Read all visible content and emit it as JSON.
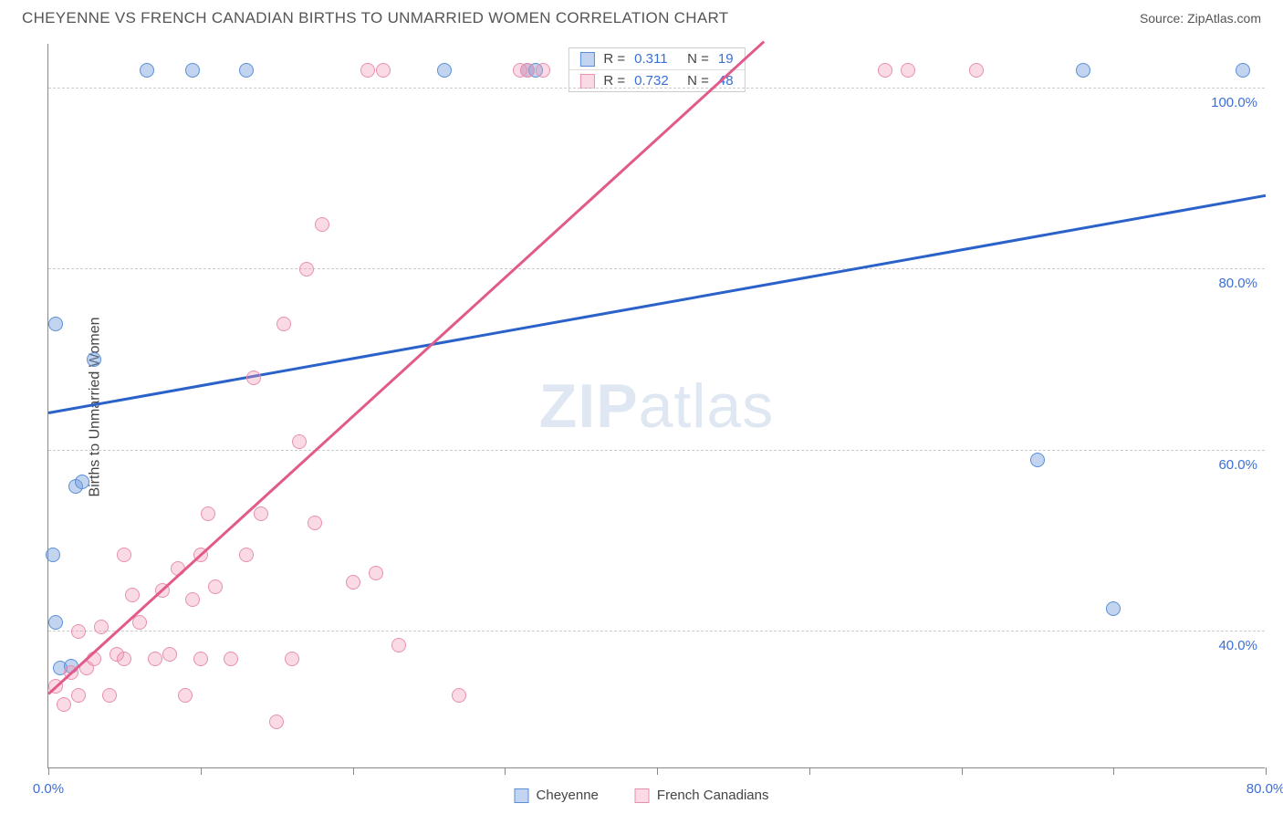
{
  "header": {
    "title": "CHEYENNE VS FRENCH CANADIAN BIRTHS TO UNMARRIED WOMEN CORRELATION CHART",
    "source_prefix": "Source: ",
    "source": "ZipAtlas.com"
  },
  "chart": {
    "y_label": "Births to Unmarried Women",
    "watermark_a": "ZIP",
    "watermark_b": "atlas",
    "xlim": [
      0,
      80
    ],
    "ylim": [
      25,
      105
    ],
    "x_ticks": [
      0,
      10,
      20,
      30,
      40,
      50,
      60,
      70,
      80
    ],
    "x_tick_labels": {
      "0": "0.0%",
      "80": "80.0%"
    },
    "y_gridlines": [
      40,
      60,
      80,
      100
    ],
    "y_tick_labels": {
      "40": "40.0%",
      "60": "60.0%",
      "80": "80.0%",
      "100": "100.0%"
    },
    "colors": {
      "blue_fill": "rgba(120,160,220,0.45)",
      "blue_stroke": "#5a8fd6",
      "pink_fill": "rgba(240,150,180,0.35)",
      "pink_stroke": "#e88fb0",
      "blue_line": "#2a62c9",
      "pink_line": "#e15a8a",
      "value_text": "#3a6fd8"
    },
    "marker_radius": 8,
    "line_width": 2.5,
    "series": [
      {
        "name": "Cheyenne",
        "color_key": "blue",
        "R": "0.311",
        "N": "19",
        "trend": {
          "x1": 0,
          "y1": 64,
          "x2": 80,
          "y2": 88
        },
        "points": [
          [
            0.3,
            48.5
          ],
          [
            0.5,
            41
          ],
          [
            0.8,
            36
          ],
          [
            1.5,
            36.2
          ],
          [
            0.5,
            74
          ],
          [
            1.8,
            56
          ],
          [
            2.2,
            56.5
          ],
          [
            3.0,
            70
          ],
          [
            6.5,
            102
          ],
          [
            9.5,
            102
          ],
          [
            13,
            102
          ],
          [
            26,
            102
          ],
          [
            31.5,
            102
          ],
          [
            32,
            102
          ],
          [
            65,
            59
          ],
          [
            68,
            102
          ],
          [
            70,
            42.5
          ],
          [
            78.5,
            102
          ]
        ]
      },
      {
        "name": "French Canadians",
        "color_key": "pink",
        "R": "0.732",
        "N": "48",
        "trend": {
          "x1": 0,
          "y1": 33,
          "x2": 47,
          "y2": 105
        },
        "points": [
          [
            0.5,
            34
          ],
          [
            1,
            32
          ],
          [
            1.5,
            35.5
          ],
          [
            2,
            33
          ],
          [
            2.5,
            36
          ],
          [
            2,
            40
          ],
          [
            3,
            37
          ],
          [
            3.5,
            40.5
          ],
          [
            4,
            33
          ],
          [
            4.5,
            37.5
          ],
          [
            5,
            37
          ],
          [
            5.5,
            44
          ],
          [
            5,
            48.5
          ],
          [
            6,
            41
          ],
          [
            7,
            37
          ],
          [
            7.5,
            44.5
          ],
          [
            8,
            37.5
          ],
          [
            8.5,
            47
          ],
          [
            9,
            33
          ],
          [
            9.5,
            43.5
          ],
          [
            10,
            37
          ],
          [
            10,
            48.5
          ],
          [
            10.5,
            53
          ],
          [
            11,
            45
          ],
          [
            12,
            37
          ],
          [
            13,
            48.5
          ],
          [
            13.5,
            68
          ],
          [
            14,
            53
          ],
          [
            15,
            30
          ],
          [
            15.5,
            74
          ],
          [
            16,
            37
          ],
          [
            16.5,
            61
          ],
          [
            17,
            80
          ],
          [
            17.5,
            52
          ],
          [
            18,
            85
          ],
          [
            20,
            45.5
          ],
          [
            21,
            102
          ],
          [
            22,
            102
          ],
          [
            21.5,
            46.5
          ],
          [
            23,
            38.5
          ],
          [
            27,
            33
          ],
          [
            31,
            102
          ],
          [
            31.5,
            102
          ],
          [
            32.5,
            102
          ],
          [
            55,
            102
          ],
          [
            56.5,
            102
          ],
          [
            61,
            102
          ]
        ]
      }
    ]
  },
  "legend_bottom": [
    {
      "label": "Cheyenne",
      "color_key": "blue"
    },
    {
      "label": "French Canadians",
      "color_key": "pink"
    }
  ]
}
